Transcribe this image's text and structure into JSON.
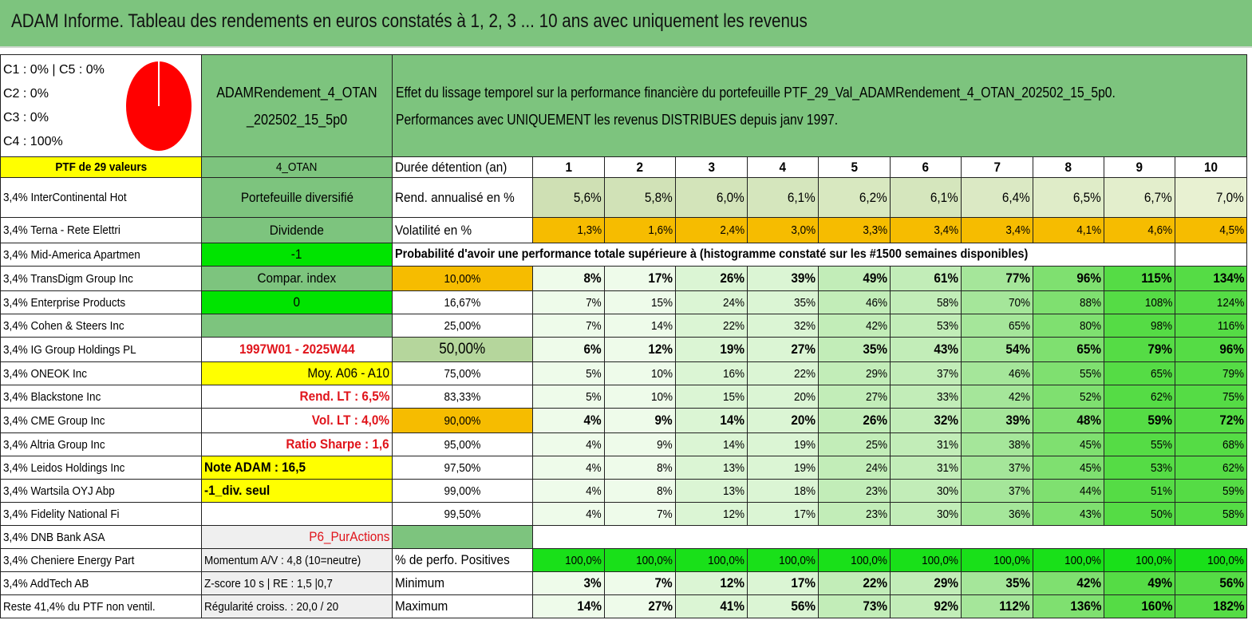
{
  "title": "ADAM Informe. Tableau des rendements en euros constatés à 1, 2, 3 ... 10 ans avec uniquement les revenus",
  "allocation": {
    "lines": [
      "C1 : 0% | C5 : 0%",
      "C2 : 0%",
      "C3 : 0%",
      "C4 : 100%"
    ],
    "pie_color": "#ff0000"
  },
  "portfolio_name": [
    "ADAMRendement_4_OTAN",
    "_202502_15_5p0"
  ],
  "description": [
    "Effet du lissage temporel sur la performance financière du portefeuille PTF_29_Val_ADAMRendement_4_OTAN_202502_15_5p0.",
    "Performances avec UNIQUEMENT les revenus DISTRIBUES depuis janv 1997."
  ],
  "ptf_label": "PTF de 29 valeurs",
  "code": "4_OTAN",
  "duration_label": "Durée détention (an)",
  "years": [
    "1",
    "2",
    "3",
    "4",
    "5",
    "6",
    "7",
    "8",
    "9",
    "10"
  ],
  "holdings": [
    "3,4% InterContinental Hot",
    "3,4% Terna - Rete Elettri",
    "3,4% Mid-America Apartmen",
    "3,4% TransDigm Group Inc",
    "3,4% Enterprise Products",
    "3,4% Cohen & Steers Inc",
    "3,4% IG Group Holdings PL",
    "3,4% ONEOK Inc",
    "3,4% Blackstone Inc",
    "3,4% CME Group Inc",
    "3,4% Altria Group Inc",
    "3,4% Leidos Holdings Inc",
    "3,4% Wartsila OYJ Abp",
    "3,4% Fidelity National Fi",
    "3,4% DNB Bank ASA",
    "3,4% Cheniere Energy Part",
    "3,4% AddTech AB",
    "Reste 41,4% du PTF non ventil."
  ],
  "info": [
    "Portefeuille diversifié",
    "Dividende",
    "-1",
    "Compar. index",
    "0",
    "",
    "1997W01 - 2025W44",
    "Moy. A06 - A10",
    "Rend. LT : 6,5%",
    "Vol. LT : 4,0%",
    "Ratio Sharpe : 1,6",
    "Note ADAM : 16,5",
    "-1_div. seul",
    "",
    "P6_PurActions",
    "Momentum A/V : 4,8 (10=neutre)",
    "Z-score 10 s | RE : 1,5 |0,7",
    "Régularité croiss. : 20,0 / 20"
  ],
  "rend": {
    "label": "Rend. annualisé en %",
    "values": [
      "5,6%",
      "5,8%",
      "6,0%",
      "6,1%",
      "6,2%",
      "6,1%",
      "6,4%",
      "6,5%",
      "6,7%",
      "7,0%"
    ]
  },
  "vol": {
    "label": "Volatilité en %",
    "values": [
      "1,3%",
      "1,6%",
      "2,4%",
      "3,0%",
      "3,3%",
      "3,4%",
      "3,4%",
      "4,1%",
      "4,6%",
      "4,5%"
    ]
  },
  "prob_header": "Probabilité d'avoir une performance totale supérieure à (histogramme constaté sur les #1500 semaines disponibles)",
  "prob_rows": [
    {
      "p": "10,00%",
      "v": [
        "8%",
        "17%",
        "26%",
        "39%",
        "49%",
        "61%",
        "77%",
        "96%",
        "115%",
        "134%"
      ]
    },
    {
      "p": "16,67%",
      "v": [
        "7%",
        "15%",
        "24%",
        "35%",
        "46%",
        "58%",
        "70%",
        "88%",
        "108%",
        "124%"
      ]
    },
    {
      "p": "25,00%",
      "v": [
        "7%",
        "14%",
        "22%",
        "32%",
        "42%",
        "53%",
        "65%",
        "80%",
        "98%",
        "116%"
      ]
    },
    {
      "p": "50,00%",
      "v": [
        "6%",
        "12%",
        "19%",
        "27%",
        "35%",
        "43%",
        "54%",
        "65%",
        "79%",
        "96%"
      ]
    },
    {
      "p": "75,00%",
      "v": [
        "5%",
        "10%",
        "16%",
        "22%",
        "29%",
        "37%",
        "46%",
        "55%",
        "65%",
        "79%"
      ]
    },
    {
      "p": "83,33%",
      "v": [
        "5%",
        "10%",
        "15%",
        "20%",
        "27%",
        "33%",
        "42%",
        "52%",
        "62%",
        "75%"
      ]
    },
    {
      "p": "90,00%",
      "v": [
        "4%",
        "9%",
        "14%",
        "20%",
        "26%",
        "32%",
        "39%",
        "48%",
        "59%",
        "72%"
      ]
    },
    {
      "p": "95,00%",
      "v": [
        "4%",
        "9%",
        "14%",
        "19%",
        "25%",
        "31%",
        "38%",
        "45%",
        "55%",
        "68%"
      ]
    },
    {
      "p": "97,50%",
      "v": [
        "4%",
        "8%",
        "13%",
        "19%",
        "24%",
        "31%",
        "37%",
        "45%",
        "53%",
        "62%"
      ]
    },
    {
      "p": "99,00%",
      "v": [
        "4%",
        "8%",
        "13%",
        "18%",
        "23%",
        "30%",
        "37%",
        "44%",
        "51%",
        "59%"
      ]
    },
    {
      "p": "99,50%",
      "v": [
        "4%",
        "7%",
        "12%",
        "17%",
        "23%",
        "30%",
        "36%",
        "43%",
        "50%",
        "58%"
      ]
    }
  ],
  "pos": {
    "label": "% de perfo. Positives",
    "values": [
      "100,0%",
      "100,0%",
      "100,0%",
      "100,0%",
      "100,0%",
      "100,0%",
      "100,0%",
      "100,0%",
      "100,0%",
      "100,0%"
    ]
  },
  "min": {
    "label": "Minimum",
    "values": [
      "3%",
      "7%",
      "12%",
      "17%",
      "22%",
      "29%",
      "35%",
      "42%",
      "49%",
      "56%"
    ]
  },
  "max": {
    "label": "Maximum",
    "values": [
      "14%",
      "27%",
      "41%",
      "56%",
      "73%",
      "92%",
      "112%",
      "136%",
      "160%",
      "182%"
    ]
  }
}
